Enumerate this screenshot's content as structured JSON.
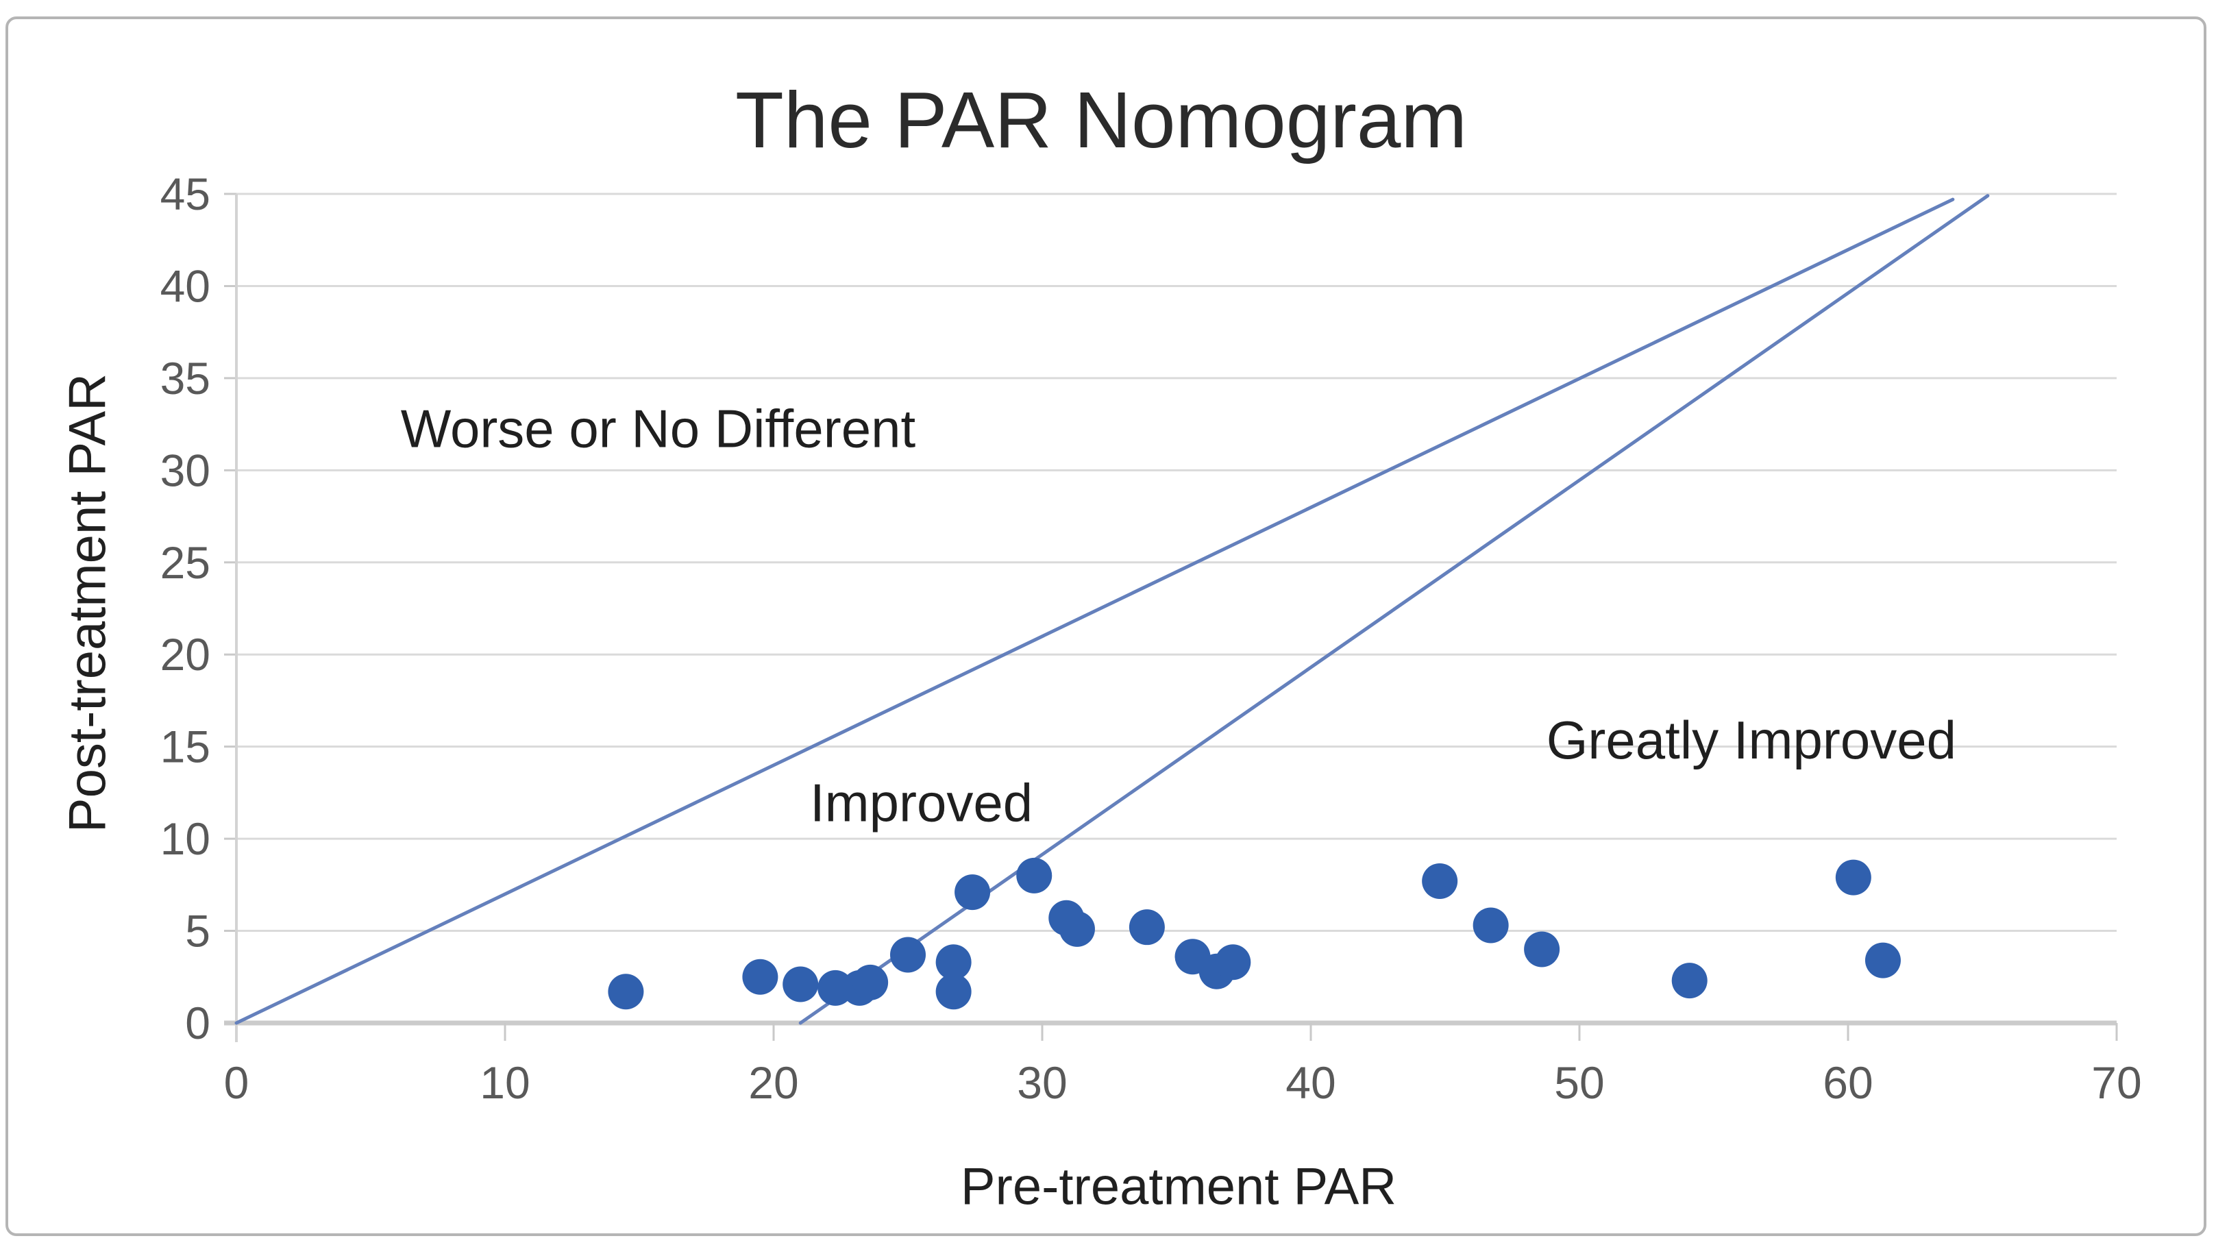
{
  "chart_data": {
    "type": "scatter",
    "title": "The PAR Nomogram",
    "xlabel": "Pre-treatment PAR",
    "ylabel": "Post-treatment PAR",
    "xlim": [
      0,
      70
    ],
    "ylim": [
      0,
      45
    ],
    "x_ticks": [
      0,
      10,
      20,
      30,
      40,
      50,
      60,
      70
    ],
    "y_ticks": [
      0,
      5,
      10,
      15,
      20,
      25,
      30,
      35,
      40,
      45
    ],
    "grid": "horizontal-only",
    "legend": "none",
    "points": [
      [
        14.5,
        1.7
      ],
      [
        19.5,
        2.5
      ],
      [
        21.0,
        2.1
      ],
      [
        22.3,
        1.9
      ],
      [
        23.2,
        1.9
      ],
      [
        23.6,
        2.2
      ],
      [
        25.0,
        3.7
      ],
      [
        26.7,
        3.3
      ],
      [
        26.7,
        1.7
      ],
      [
        27.4,
        7.1
      ],
      [
        29.7,
        8.0
      ],
      [
        30.9,
        5.7
      ],
      [
        31.3,
        5.1
      ],
      [
        33.9,
        5.2
      ],
      [
        35.6,
        3.6
      ],
      [
        36.5,
        2.8
      ],
      [
        37.1,
        3.3
      ],
      [
        44.8,
        7.7
      ],
      [
        46.7,
        5.3
      ],
      [
        48.6,
        4.0
      ],
      [
        54.1,
        2.3
      ],
      [
        60.2,
        7.9
      ],
      [
        61.3,
        3.4
      ]
    ],
    "lines": [
      {
        "name": "upper-boundary-line",
        "from": [
          0,
          0
        ],
        "to": [
          63.9,
          44.7
        ]
      },
      {
        "name": "lower-boundary-line",
        "from": [
          21,
          0
        ],
        "to": [
          65.2,
          44.9
        ]
      }
    ],
    "region_labels": [
      {
        "text": "Worse or No Different",
        "x": 15.7,
        "y": 32.3
      },
      {
        "text": "Improved",
        "x": 25.5,
        "y": 12.0
      },
      {
        "text": "Greatly Improved",
        "x": 56.4,
        "y": 15.4
      }
    ]
  },
  "colors": {
    "point": "#3060ae",
    "line": "#6480bc",
    "grid": "#dadada",
    "x_axis": "#cbcbcb",
    "y_axis": "#d3d3d3",
    "tick": "#c9c9c9",
    "tick_label": "#595959",
    "title": "#2b2b2b",
    "axis_title": "#202020",
    "region_label": "#1f1f1f",
    "frame_border": "#b5b5b5"
  }
}
